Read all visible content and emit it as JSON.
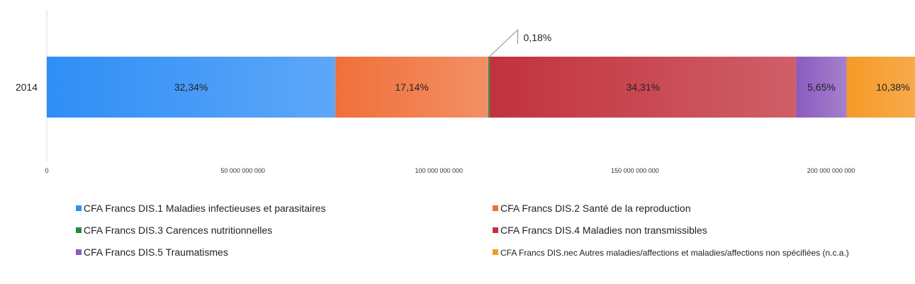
{
  "chart_data": {
    "type": "bar",
    "orientation": "horizontal",
    "stacked": true,
    "categories": [
      "2014"
    ],
    "series": [
      {
        "name": "CFA Francs DIS.1 Maladies infectieuses et parasitaires",
        "values": [
          73600000000
        ],
        "label": "32,34%",
        "color": "#2f8ef6"
      },
      {
        "name": "CFA Francs DIS.2 Santé de la reproduction",
        "values": [
          39000000000
        ],
        "label": "17,14%",
        "color": "#f0703a"
      },
      {
        "name": "CFA Francs DIS.3 Carences nutritionnelles",
        "values": [
          410000000
        ],
        "label": "0,18%",
        "color": "#1f8a3a"
      },
      {
        "name": "CFA Francs DIS.4 Maladies non transmissibles",
        "values": [
          78100000000
        ],
        "label": "34,31%",
        "color": "#c2323d"
      },
      {
        "name": "CFA Francs DIS.5 Traumatismes",
        "values": [
          12860000000
        ],
        "label": "5,65%",
        "color": "#8a5cbf"
      },
      {
        "name": "CFA Francs DIS.nec Autres maladies/affections et maladies/affections non spécifiées (n.c.a.)",
        "values": [
          23630000000
        ],
        "label": "10,38%",
        "color": "#f59a27"
      }
    ],
    "xlim": [
      0,
      227000000000
    ],
    "x_ticks": [
      0,
      50000000000,
      100000000000,
      150000000000,
      200000000000
    ],
    "x_tick_labels": [
      "0",
      "50 000 000 000",
      "100 000 000 000",
      "150 000 000 000",
      "200 000 000 000"
    ],
    "grid": false,
    "legend_position": "bottom"
  }
}
